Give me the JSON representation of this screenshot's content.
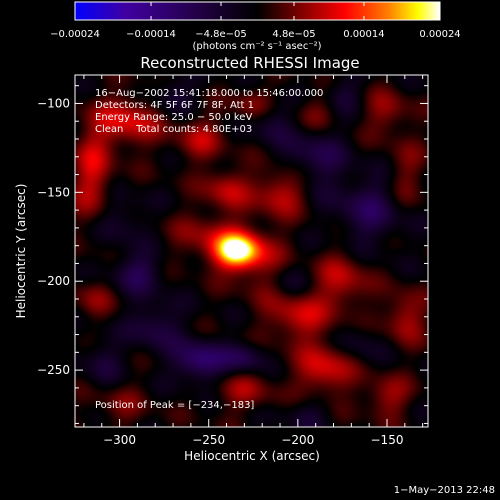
{
  "chart_data": {
    "type": "heatmap",
    "title": "Reconstructed RHESSI Image",
    "xlabel": "Heliocentric X (arcsec)",
    "ylabel": "Heliocentric Y (arcsec)",
    "xlim": [
      -325,
      -127
    ],
    "ylim": [
      -282,
      -84
    ],
    "x_ticks": [
      {
        "value": -300,
        "label": "−300"
      },
      {
        "value": -250,
        "label": "−250"
      },
      {
        "value": -200,
        "label": "−200"
      },
      {
        "value": -150,
        "label": "−150"
      }
    ],
    "y_ticks": [
      {
        "value": -100,
        "label": "−100"
      },
      {
        "value": -150,
        "label": "−150"
      },
      {
        "value": -200,
        "label": "−200"
      },
      {
        "value": -250,
        "label": "−250"
      }
    ],
    "colorbar": {
      "range": [
        -0.00024,
        0.00024
      ],
      "colors": [
        "#0000ff",
        "#4000a0",
        "#000000",
        "#800000",
        "#ff0000",
        "#ff8000",
        "#ffff00",
        "#ffffff"
      ],
      "ticks": [
        {
          "value": -0.00024,
          "label": "−0.00024"
        },
        {
          "value": -0.00014,
          "label": "−0.00014"
        },
        {
          "value": -4.8e-05,
          "label": "−4.8e−05"
        },
        {
          "value": 4.8e-05,
          "label": "4.8e−05"
        },
        {
          "value": 0.00014,
          "label": "0.00014"
        },
        {
          "value": 0.00024,
          "label": "0.00024"
        }
      ],
      "unit_label": "(photons cm⁻² s⁻¹ asec⁻²)"
    },
    "annotations": [
      "16−Aug−2002 15:41:18.000 to 15:46:00.000",
      "Detectors: 4F 5F 6F 7F 8F, Att 1",
      "Energy Range: 25.0 − 50.0 keV",
      "Clean    Total counts: 4.80E+03"
    ],
    "peak": {
      "x": -234,
      "y": -183,
      "label": "Position of Peak = [−234,−183]"
    },
    "timestamp": "1−May−2013 22:48",
    "sources": [
      {
        "x": -234,
        "y": -183,
        "sx": 9,
        "sy": 7,
        "a": 0.000235
      },
      {
        "x": -250,
        "y": -175,
        "sx": 14,
        "sy": 10,
        "a": 6e-05
      },
      {
        "x": -220,
        "y": -190,
        "sx": 12,
        "sy": 14,
        "a": 5e-05
      },
      {
        "x": -210,
        "y": -150,
        "sx": 10,
        "sy": 9,
        "a": 9e-05
      },
      {
        "x": -240,
        "y": -148,
        "sx": 9,
        "sy": 8,
        "a": 8e-05
      },
      {
        "x": -295,
        "y": -110,
        "sx": 12,
        "sy": 10,
        "a": 0.0001
      },
      {
        "x": -315,
        "y": -140,
        "sx": 8,
        "sy": 20,
        "a": 9e-05
      },
      {
        "x": -255,
        "y": -120,
        "sx": 10,
        "sy": 9,
        "a": 7e-05
      },
      {
        "x": -225,
        "y": -100,
        "sx": 8,
        "sy": 7,
        "a": 6e-05
      },
      {
        "x": -190,
        "y": -105,
        "sx": 9,
        "sy": 7,
        "a": 5e-05
      },
      {
        "x": -150,
        "y": -105,
        "sx": 9,
        "sy": 9,
        "a": 6e-05
      },
      {
        "x": -140,
        "y": -140,
        "sx": 8,
        "sy": 14,
        "a": 5e-05
      },
      {
        "x": -200,
        "y": -220,
        "sx": 12,
        "sy": 10,
        "a": 9e-05
      },
      {
        "x": -175,
        "y": -200,
        "sx": 10,
        "sy": 12,
        "a": 8e-05
      },
      {
        "x": -185,
        "y": -250,
        "sx": 11,
        "sy": 10,
        "a": 0.0001
      },
      {
        "x": -140,
        "y": -220,
        "sx": 8,
        "sy": 10,
        "a": 8e-05
      },
      {
        "x": -150,
        "y": -265,
        "sx": 9,
        "sy": 8,
        "a": 7e-05
      },
      {
        "x": -230,
        "y": -262,
        "sx": 12,
        "sy": 8,
        "a": 6e-05
      },
      {
        "x": -300,
        "y": -270,
        "sx": 12,
        "sy": 9,
        "a": 4e-05
      },
      {
        "x": -315,
        "y": -210,
        "sx": 8,
        "sy": 8,
        "a": 5e-05
      },
      {
        "x": -280,
        "y": -225,
        "sx": 10,
        "sy": 10,
        "a": -7e-05
      },
      {
        "x": -255,
        "y": -245,
        "sx": 10,
        "sy": 8,
        "a": -0.00012
      },
      {
        "x": -230,
        "y": -243,
        "sx": 8,
        "sy": 6,
        "a": -8e-05
      },
      {
        "x": -290,
        "y": -195,
        "sx": 10,
        "sy": 8,
        "a": -8e-05
      },
      {
        "x": -300,
        "y": -165,
        "sx": 10,
        "sy": 10,
        "a": -5e-05
      },
      {
        "x": -190,
        "y": -130,
        "sx": 12,
        "sy": 12,
        "a": -7e-05
      },
      {
        "x": -160,
        "y": -160,
        "sx": 14,
        "sy": 14,
        "a": -8e-05
      },
      {
        "x": -215,
        "y": -110,
        "sx": 8,
        "sy": 8,
        "a": -6e-05
      },
      {
        "x": -270,
        "y": -95,
        "sx": 8,
        "sy": 7,
        "a": -6e-05
      },
      {
        "x": -175,
        "y": -95,
        "sx": 8,
        "sy": 7,
        "a": -5e-05
      },
      {
        "x": -205,
        "y": -200,
        "sx": 8,
        "sy": 8,
        "a": -4e-05
      },
      {
        "x": -165,
        "y": -235,
        "sx": 8,
        "sy": 8,
        "a": -4e-05
      },
      {
        "x": -310,
        "y": -245,
        "sx": 8,
        "sy": 10,
        "a": -5e-05
      },
      {
        "x": -195,
        "y": -275,
        "sx": 10,
        "sy": 7,
        "a": -4e-05
      }
    ]
  }
}
